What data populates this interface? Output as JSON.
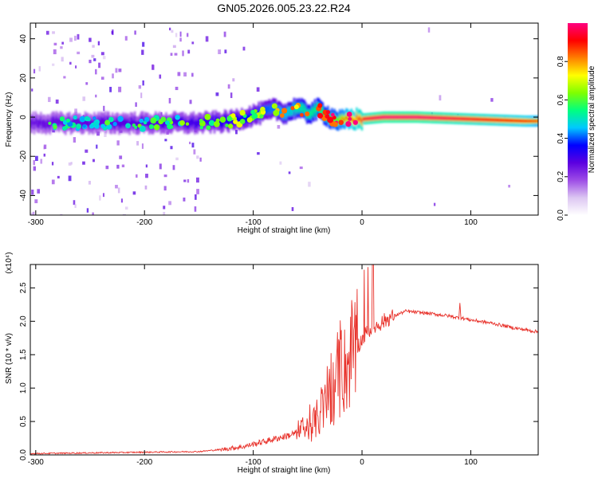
{
  "title": "GN05.2026.005.23.22.R24",
  "chart_data": [
    {
      "type": "heatmap",
      "title": "GN05.2026.005.23.22.R24",
      "xlabel": "Height of straight line (km)",
      "ylabel": "Frequency (Hz)",
      "xlim": [
        -305,
        162
      ],
      "ylim": [
        -50,
        48
      ],
      "xticks": [
        -300,
        -200,
        -100,
        0,
        100
      ],
      "xtick_labels": [
        "-300",
        "-200",
        "-100",
        "0",
        "100"
      ],
      "yticks": [
        -40,
        -20,
        0,
        20,
        40
      ],
      "ytick_labels": [
        "-40",
        "-20",
        "0",
        "20",
        "40"
      ],
      "colorbar": {
        "label": "Normalized spectral amplitude",
        "range": [
          0.0,
          1.0
        ],
        "ticks": [
          0.0,
          0.2,
          0.4,
          0.6,
          0.8
        ],
        "tick_labels": [
          "0.0",
          "0.2",
          "0.4",
          "0.6",
          "0.8"
        ],
        "colors": [
          "#ffffff",
          "#dcc6f2",
          "#9d4ce6",
          "#5b00e0",
          "#0000ff",
          "#00c8ff",
          "#00ff80",
          "#7fff00",
          "#ffff00",
          "#ff8000",
          "#ff0000",
          "#ff0080"
        ]
      },
      "ridge": {
        "x": [
          -305,
          -250,
          -200,
          -150,
          -120,
          -100,
          -80,
          -70,
          -60,
          -50,
          -40,
          -30,
          -20,
          -10,
          0,
          20,
          50,
          100,
          150,
          162
        ],
        "freq": [
          -3,
          -3,
          -3,
          -3,
          -2,
          1,
          4,
          2,
          5,
          2,
          4,
          0,
          -2,
          -1,
          -1,
          0,
          0,
          -1,
          -2,
          -2
        ],
        "amplitude": [
          0.3,
          0.32,
          0.34,
          0.36,
          0.42,
          0.45,
          0.5,
          0.55,
          0.6,
          0.62,
          0.65,
          0.7,
          0.75,
          0.85,
          0.9,
          0.95,
          0.95,
          0.9,
          0.85,
          0.8
        ]
      }
    },
    {
      "type": "line",
      "xlabel": "Height of straight line (km)",
      "ylabel": "SNR (10 * v/v)",
      "scale_label": "(x10⁴)",
      "xlim": [
        -305,
        162
      ],
      "ylim": [
        0.0,
        2.85
      ],
      "xticks": [
        -300,
        -200,
        -100,
        0,
        100
      ],
      "xtick_labels": [
        "-300",
        "-200",
        "-100",
        "0",
        "100"
      ],
      "yticks": [
        0.0,
        0.5,
        1.0,
        1.5,
        2.0,
        2.5
      ],
      "ytick_labels": [
        "0.0",
        "0.5",
        "1.0",
        "1.5",
        "2.0",
        "2.5"
      ],
      "color": "#e8332c",
      "series": [
        {
          "name": "SNR",
          "x": [
            -305,
            -250,
            -200,
            -150,
            -130,
            -110,
            -90,
            -70,
            -55,
            -45,
            -35,
            -25,
            -15,
            -5,
            5,
            15,
            25,
            40,
            60,
            80,
            89,
            90,
            91,
            100,
            120,
            140,
            162
          ],
          "y": [
            0.02,
            0.03,
            0.04,
            0.05,
            0.08,
            0.12,
            0.2,
            0.28,
            0.35,
            0.45,
            0.7,
            1.0,
            1.3,
            1.6,
            1.85,
            1.95,
            2.05,
            2.15,
            2.12,
            2.08,
            2.05,
            2.28,
            2.05,
            2.02,
            1.97,
            1.9,
            1.84
          ]
        }
      ]
    }
  ]
}
